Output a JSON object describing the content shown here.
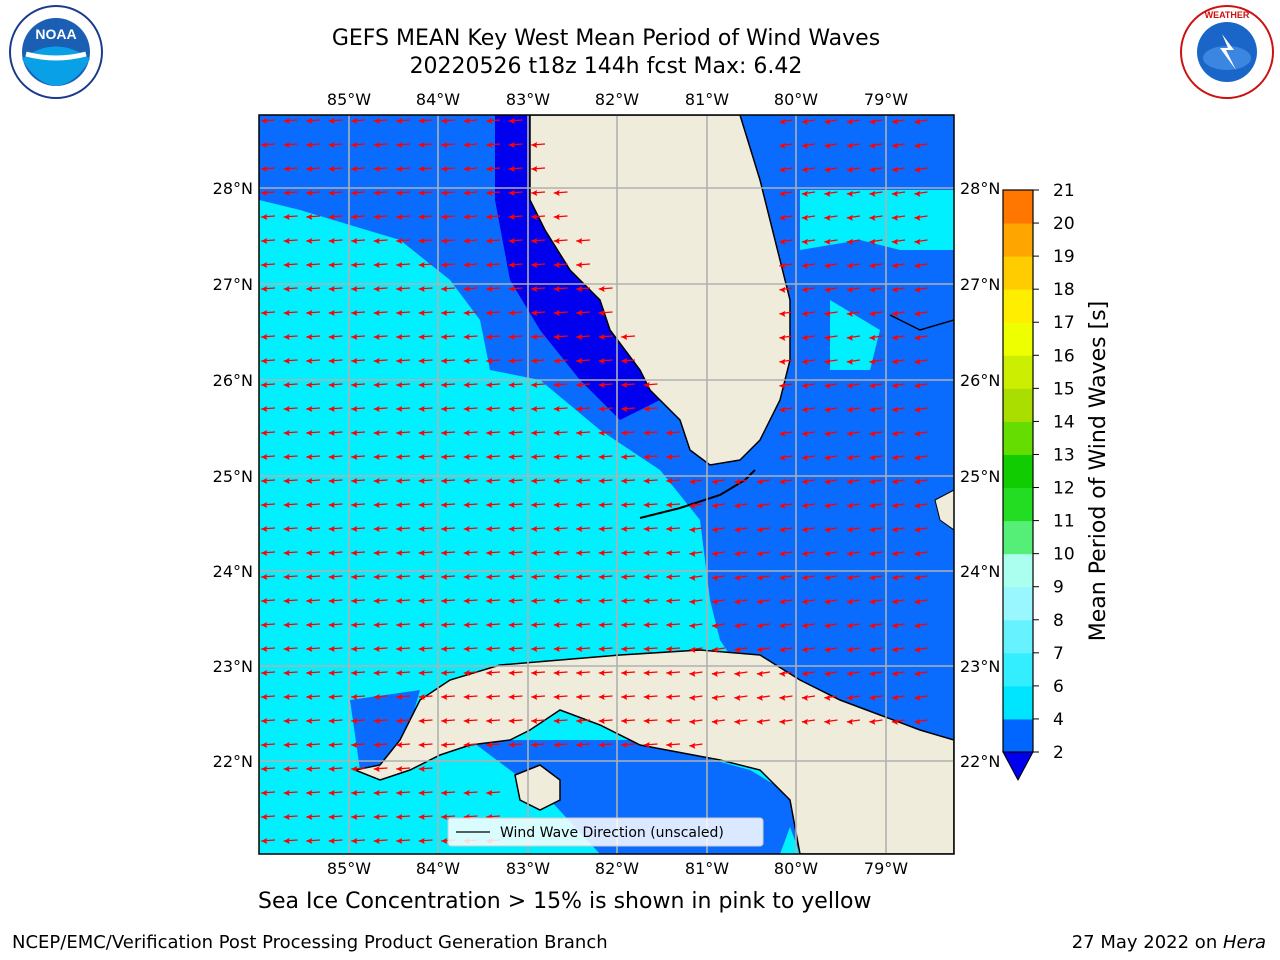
{
  "title_line1": "GEFS MEAN Key West Mean Period of Wind Waves",
  "title_line2": "20220526 t18z 144h fcst   Max: 6.42",
  "subtitle": "Sea Ice Concentration > 15% is shown in pink to yellow",
  "footer_left": "NCEP/EMC/Verification Post Processing Product Generation Branch",
  "footer_date": "27 May 2022 on ",
  "footer_host": "Hera",
  "legend": {
    "label": "Wind Wave Direction (unscaled)"
  },
  "colorbar": {
    "label": "Mean Period of Wind Waves [s]",
    "ticks": [
      "2",
      "4",
      "6",
      "7",
      "8",
      "9",
      "10",
      "11",
      "12",
      "13",
      "14",
      "15",
      "16",
      "17",
      "18",
      "19",
      "20",
      "21"
    ],
    "colors": [
      "#0066ff",
      "#00e5ff",
      "#33eeff",
      "#66f2ff",
      "#99f7ff",
      "#aaffee",
      "#55ee77",
      "#22dd22",
      "#11cc00",
      "#66dd00",
      "#aadd00",
      "#ccee00",
      "#eeff00",
      "#ffee00",
      "#ffcc00",
      "#ffa500",
      "#ff7700",
      "#ff4400",
      "#ff2200",
      "#ff0000"
    ],
    "under_color": "#0000ee"
  },
  "axes": {
    "lon_labels": [
      "85°W",
      "84°W",
      "83°W",
      "82°W",
      "81°W",
      "80°W",
      "79°W"
    ],
    "lat_labels": [
      "28°N",
      "27°N",
      "26°N",
      "25°N",
      "24°N",
      "23°N",
      "22°N"
    ],
    "lon_range": [
      -86.0,
      -78.3
    ],
    "lat_range": [
      21.0,
      28.8
    ]
  },
  "max_value": 6.42,
  "colors": {
    "land": "#efecdc",
    "arrow": "#ff0000",
    "grid": "#b0b0b0"
  },
  "logos": {
    "noaa": "NOAA",
    "nws": "NATIONAL WEATHER SERVICE"
  }
}
